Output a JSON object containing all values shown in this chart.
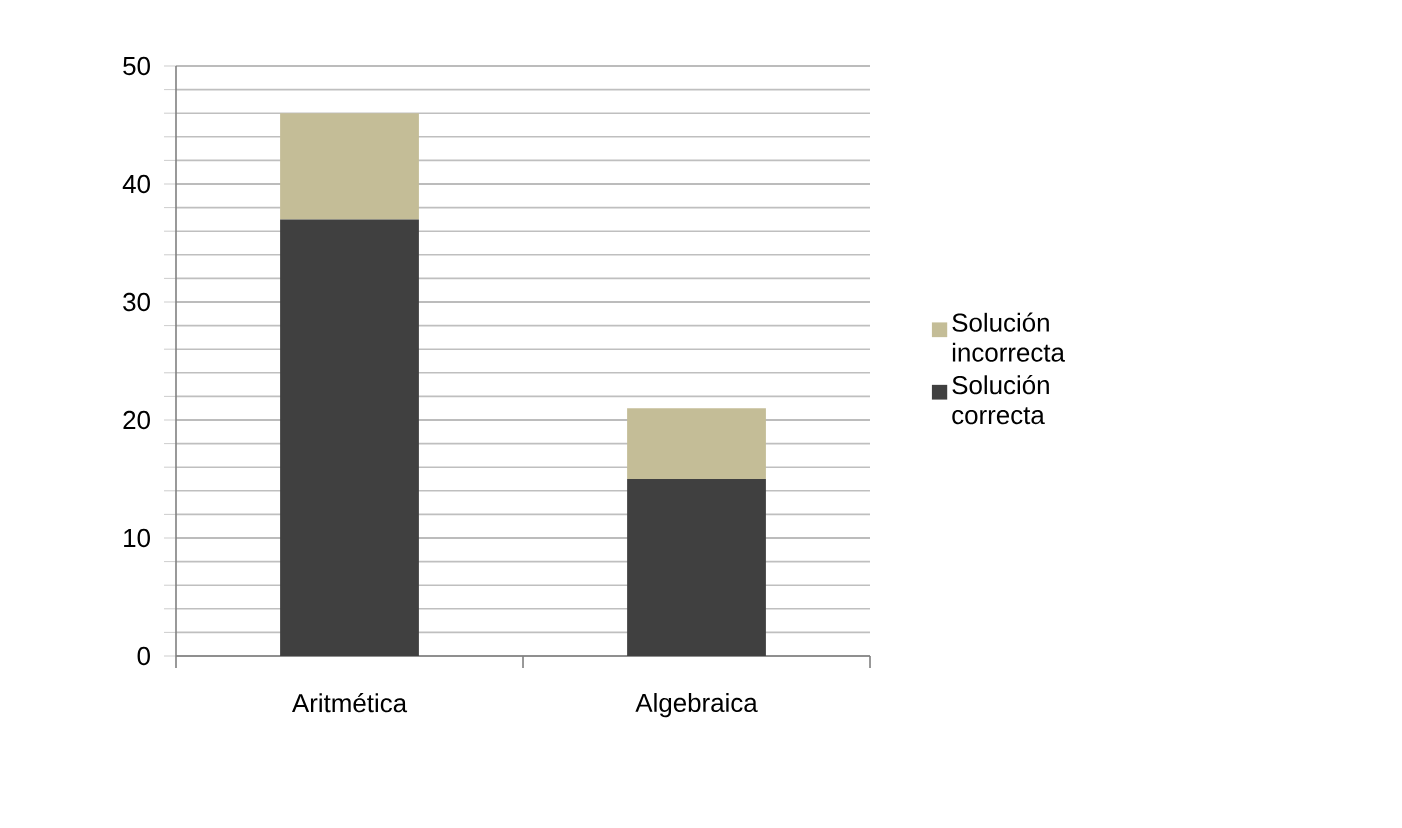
{
  "chart_data": {
    "type": "bar",
    "stacked": true,
    "categories": [
      "Aritmética",
      "Algebraica"
    ],
    "series": [
      {
        "name": "Solución correcta",
        "color": "#404040",
        "values": [
          37,
          15
        ]
      },
      {
        "name": "Solución incorrecta",
        "color": "#c4bd97",
        "values": [
          9,
          6
        ]
      }
    ],
    "ylim": [
      0,
      50
    ],
    "yticks": [
      0,
      10,
      20,
      30,
      40,
      50
    ],
    "grid": "y",
    "legend": "right"
  }
}
